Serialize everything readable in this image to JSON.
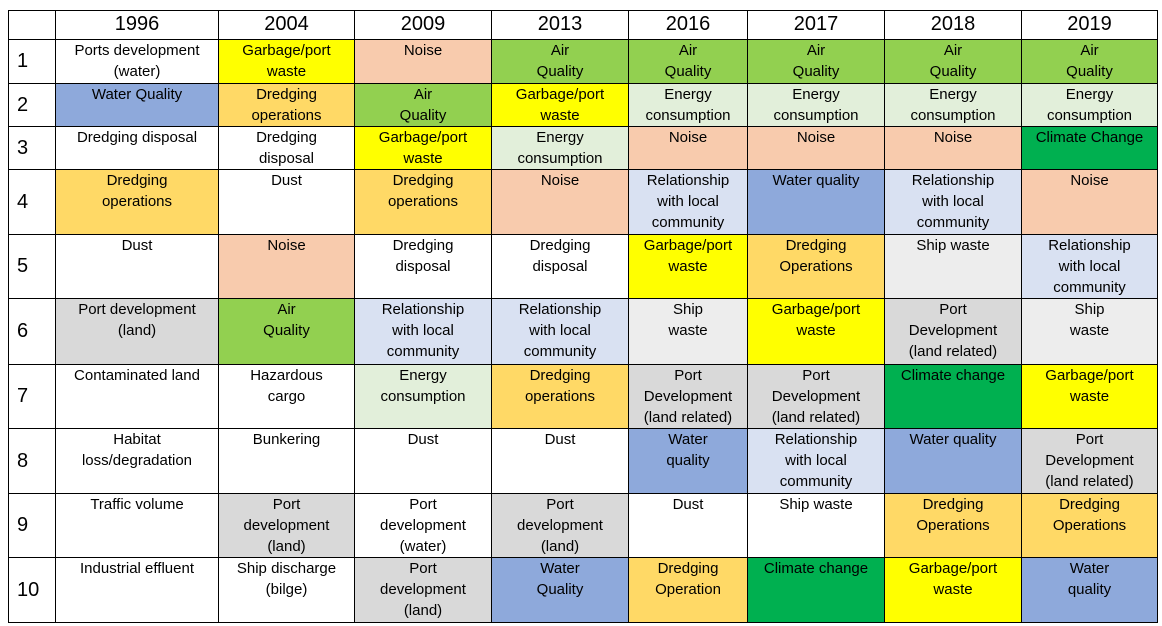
{
  "colors": {
    "G": "#92D050",
    "Y": "#FFFF00",
    "P": "#F8CBAD",
    "B": "#8EA9DB",
    "O": "#FFD966",
    "E": "#E2EFDA",
    "D": "#00B050",
    "L": "#D9E1F2",
    "S": "#D9D9D9",
    "W": "#EDEDED",
    "": "#FFFFFF"
  },
  "table": {
    "corner": "",
    "years": [
      "1996",
      "2004",
      "2009",
      "2013",
      "2016",
      "2017",
      "2018",
      "2019"
    ],
    "rows": [
      {
        "rank": "1",
        "cells": [
          {
            "text": "Ports development\n(water)",
            "color": ""
          },
          {
            "text": "Garbage/port\nwaste",
            "color": "Y"
          },
          {
            "text": "Noise",
            "color": "P"
          },
          {
            "text": "Air\nQuality",
            "color": "G"
          },
          {
            "text": "Air\nQuality",
            "color": "G"
          },
          {
            "text": "Air\nQuality",
            "color": "G"
          },
          {
            "text": "Air\nQuality",
            "color": "G"
          },
          {
            "text": "Air\nQuality",
            "color": "G"
          }
        ]
      },
      {
        "rank": "2",
        "cells": [
          {
            "text": "Water Quality",
            "color": "B"
          },
          {
            "text": "Dredging\noperations",
            "color": "O"
          },
          {
            "text": "Air\nQuality",
            "color": "G"
          },
          {
            "text": "Garbage/port\nwaste",
            "color": "Y"
          },
          {
            "text": "Energy\nconsumption",
            "color": "E"
          },
          {
            "text": "Energy\nconsumption",
            "color": "E"
          },
          {
            "text": "Energy\nconsumption",
            "color": "E"
          },
          {
            "text": "Energy\nconsumption",
            "color": "E"
          }
        ]
      },
      {
        "rank": "3",
        "cells": [
          {
            "text": "Dredging disposal",
            "color": ""
          },
          {
            "text": "Dredging\ndisposal",
            "color": ""
          },
          {
            "text": "Garbage/port\nwaste",
            "color": "Y"
          },
          {
            "text": "Energy\nconsumption",
            "color": "E"
          },
          {
            "text": "Noise",
            "color": "P"
          },
          {
            "text": "Noise",
            "color": "P"
          },
          {
            "text": "Noise",
            "color": "P"
          },
          {
            "text": "Climate Change",
            "color": "D"
          }
        ]
      },
      {
        "rank": "4",
        "cells": [
          {
            "text": "Dredging\noperations",
            "color": "O"
          },
          {
            "text": "Dust",
            "color": ""
          },
          {
            "text": "Dredging\noperations",
            "color": "O"
          },
          {
            "text": "Noise",
            "color": "P"
          },
          {
            "text": "Relationship\nwith local\ncommunity",
            "color": "L"
          },
          {
            "text": "Water quality",
            "color": "B"
          },
          {
            "text": "Relationship\nwith local\ncommunity",
            "color": "L"
          },
          {
            "text": "Noise",
            "color": "P"
          }
        ]
      },
      {
        "rank": "5",
        "cells": [
          {
            "text": "Dust",
            "color": ""
          },
          {
            "text": "Noise",
            "color": "P"
          },
          {
            "text": "Dredging\ndisposal",
            "color": ""
          },
          {
            "text": "Dredging\ndisposal",
            "color": ""
          },
          {
            "text": "Garbage/port\nwaste",
            "color": "Y"
          },
          {
            "text": "Dredging\nOperations",
            "color": "O"
          },
          {
            "text": "Ship waste",
            "color": "W"
          },
          {
            "text": "Relationship\nwith local\ncommunity",
            "color": "L"
          }
        ]
      },
      {
        "rank": "6",
        "cells": [
          {
            "text": "Port development\n(land)",
            "color": "S"
          },
          {
            "text": "Air\nQuality",
            "color": "G"
          },
          {
            "text": "Relationship\nwith local\ncommunity",
            "color": "L"
          },
          {
            "text": "Relationship\nwith local\ncommunity",
            "color": "L"
          },
          {
            "text": "Ship\nwaste",
            "color": "W"
          },
          {
            "text": "Garbage/port\nwaste",
            "color": "Y"
          },
          {
            "text": "Port\nDevelopment\n(land related)",
            "color": "S"
          },
          {
            "text": "Ship\nwaste",
            "color": "W"
          }
        ]
      },
      {
        "rank": "7",
        "cells": [
          {
            "text": "Contaminated land",
            "color": ""
          },
          {
            "text": "Hazardous\ncargo",
            "color": ""
          },
          {
            "text": "Energy\nconsumption",
            "color": "E"
          },
          {
            "text": "Dredging\noperations",
            "color": "O"
          },
          {
            "text": "Port\nDevelopment\n(land related)",
            "color": "S"
          },
          {
            "text": "Port\nDevelopment\n(land related)",
            "color": "S"
          },
          {
            "text": "Climate change",
            "color": "D"
          },
          {
            "text": "Garbage/port\nwaste",
            "color": "Y"
          }
        ]
      },
      {
        "rank": "8",
        "cells": [
          {
            "text": "Habitat\nloss/degradation",
            "color": ""
          },
          {
            "text": "Bunkering",
            "color": ""
          },
          {
            "text": "Dust",
            "color": ""
          },
          {
            "text": "Dust",
            "color": ""
          },
          {
            "text": "Water\nquality",
            "color": "B"
          },
          {
            "text": "Relationship\nwith local\ncommunity",
            "color": "L"
          },
          {
            "text": "Water quality",
            "color": "B"
          },
          {
            "text": "Port\nDevelopment\n(land related)",
            "color": "S"
          }
        ]
      },
      {
        "rank": "9",
        "cells": [
          {
            "text": "Traffic volume",
            "color": ""
          },
          {
            "text": "Port\ndevelopment\n(land)",
            "color": "S"
          },
          {
            "text": "Port\ndevelopment\n(water)",
            "color": ""
          },
          {
            "text": "Port\ndevelopment\n(land)",
            "color": "S"
          },
          {
            "text": "Dust",
            "color": ""
          },
          {
            "text": "Ship waste",
            "color": ""
          },
          {
            "text": "Dredging\nOperations",
            "color": "O"
          },
          {
            "text": "Dredging\nOperations",
            "color": "O"
          }
        ]
      },
      {
        "rank": "10",
        "cells": [
          {
            "text": "Industrial effluent",
            "color": ""
          },
          {
            "text": "Ship discharge\n(bilge)",
            "color": ""
          },
          {
            "text": "Port\ndevelopment\n(land)",
            "color": "S"
          },
          {
            "text": "Water\nQuality",
            "color": "B"
          },
          {
            "text": "Dredging\nOperation",
            "color": "O"
          },
          {
            "text": "Climate change",
            "color": "D"
          },
          {
            "text": "Garbage/port\nwaste",
            "color": "Y"
          },
          {
            "text": "Water\nquality",
            "color": "B"
          }
        ]
      }
    ]
  }
}
